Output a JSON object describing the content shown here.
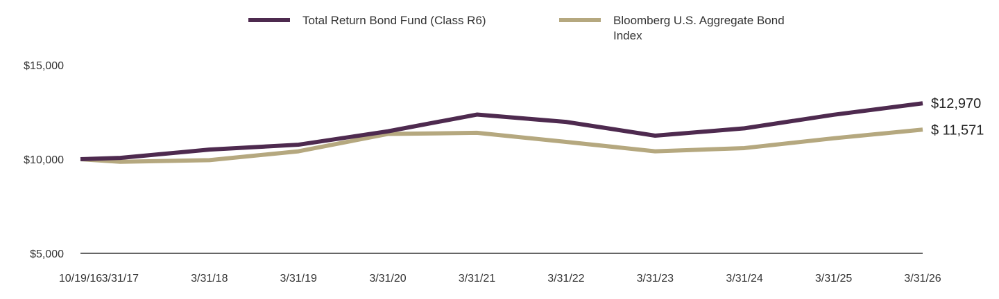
{
  "chart_data": {
    "type": "line",
    "x": [
      "10/19/16",
      "3/31/17",
      "3/31/18",
      "3/31/19",
      "3/31/20",
      "3/31/21",
      "3/31/22",
      "3/31/23",
      "3/31/24",
      "3/31/25",
      "3/31/26"
    ],
    "series": [
      {
        "name": "Total Return Bond Fund (Class R6)",
        "color": "#4e2a4f",
        "values": [
          10000,
          10070,
          10510,
          10770,
          11480,
          12370,
          11980,
          11250,
          11640,
          12360,
          12970
        ],
        "end_label": "$12,970"
      },
      {
        "name": "Bloomberg U.S. Aggregate Bond Index",
        "color": "#b5a87f",
        "values": [
          10000,
          9860,
          9950,
          10420,
          11340,
          11400,
          10920,
          10420,
          10590,
          11110,
          11571
        ],
        "end_label": "$ 11,571"
      }
    ],
    "y_ticks": [
      {
        "value": 5000,
        "label": "$5,000"
      },
      {
        "value": 10000,
        "label": "$10,000"
      },
      {
        "value": 15000,
        "label": "$15,000"
      }
    ],
    "ylim": [
      5000,
      15000
    ],
    "legend_position": "top-center",
    "grid": false
  }
}
